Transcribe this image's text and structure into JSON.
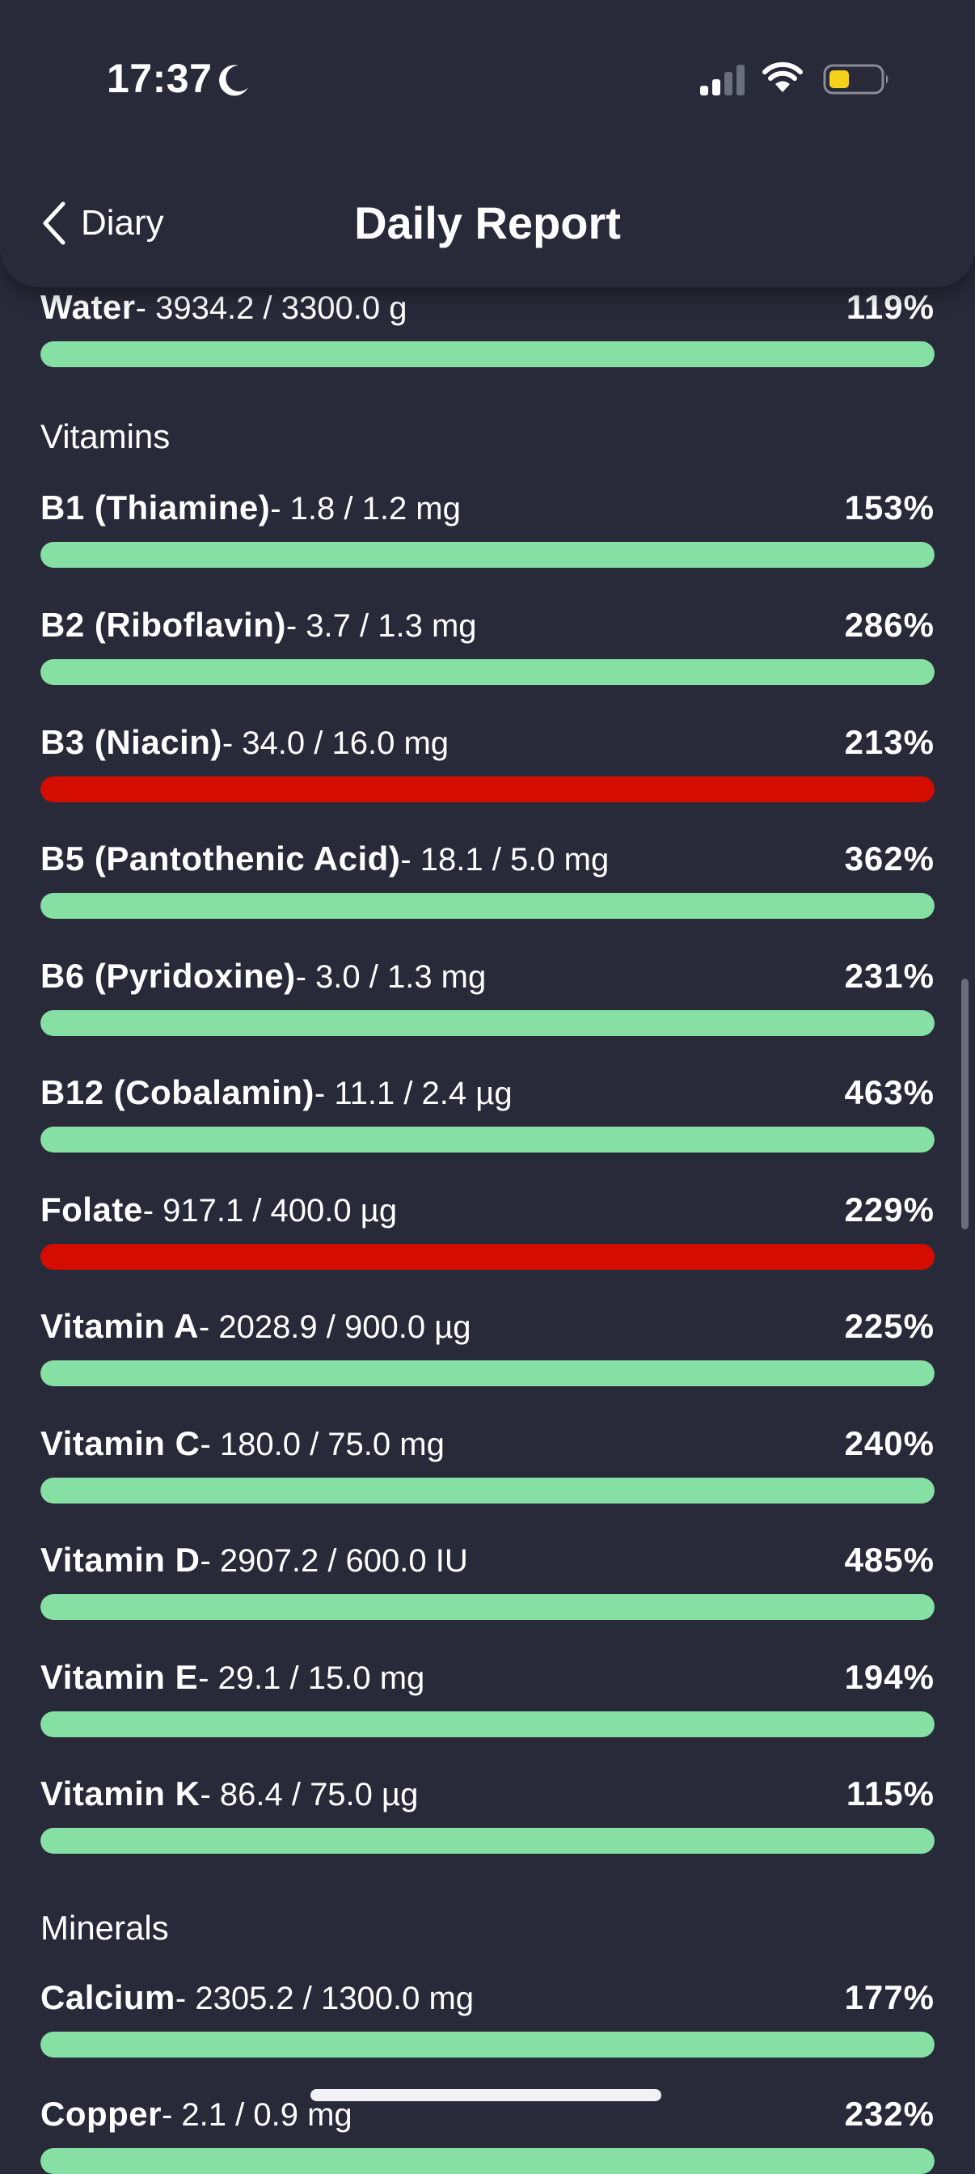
{
  "status_bar": {
    "time": "17:37",
    "icons": [
      "moon-icon",
      "cellular-signal-icon",
      "wifi-icon",
      "battery-icon"
    ]
  },
  "header": {
    "back_label": "Diary",
    "title": "Daily Report"
  },
  "colors": {
    "background": "#282a39",
    "bar_ok": "#86dfa3",
    "bar_warning": "#d50c00"
  },
  "sections": [
    {
      "title": "",
      "items": [
        {
          "name": "Water",
          "amount": "- 3934.2 / 3300.0 g",
          "percent": "119%",
          "fill": 1.0,
          "status": "ok"
        }
      ]
    },
    {
      "title": "Vitamins",
      "items": [
        {
          "name": "B1 (Thiamine)",
          "amount": "- 1.8 / 1.2 mg",
          "percent": "153%",
          "fill": 1.0,
          "status": "ok"
        },
        {
          "name": "B2 (Riboflavin)",
          "amount": "- 3.7 / 1.3 mg",
          "percent": "286%",
          "fill": 1.0,
          "status": "ok"
        },
        {
          "name": "B3 (Niacin)",
          "amount": "- 34.0 / 16.0 mg",
          "percent": "213%",
          "fill": 1.0,
          "status": "warning"
        },
        {
          "name": "B5 (Pantothenic Acid)",
          "amount": "- 18.1 / 5.0 mg",
          "percent": "362%",
          "fill": 1.0,
          "status": "ok"
        },
        {
          "name": "B6 (Pyridoxine)",
          "amount": "- 3.0 / 1.3 mg",
          "percent": "231%",
          "fill": 1.0,
          "status": "ok"
        },
        {
          "name": "B12 (Cobalamin)",
          "amount": "- 11.1 / 2.4 µg",
          "percent": "463%",
          "fill": 1.0,
          "status": "ok"
        },
        {
          "name": "Folate",
          "amount": "- 917.1 / 400.0 µg",
          "percent": "229%",
          "fill": 1.0,
          "status": "warning"
        },
        {
          "name": "Vitamin A",
          "amount": "- 2028.9 / 900.0 µg",
          "percent": "225%",
          "fill": 1.0,
          "status": "ok"
        },
        {
          "name": "Vitamin C",
          "amount": "- 180.0 / 75.0 mg",
          "percent": "240%",
          "fill": 1.0,
          "status": "ok"
        },
        {
          "name": "Vitamin D",
          "amount": "- 2907.2 / 600.0 IU",
          "percent": "485%",
          "fill": 1.0,
          "status": "ok"
        },
        {
          "name": "Vitamin E",
          "amount": "- 29.1 / 15.0 mg",
          "percent": "194%",
          "fill": 1.0,
          "status": "ok"
        },
        {
          "name": "Vitamin K",
          "amount": "- 86.4 / 75.0 µg",
          "percent": "115%",
          "fill": 1.0,
          "status": "ok"
        }
      ]
    },
    {
      "title": "Minerals",
      "items": [
        {
          "name": "Calcium",
          "amount": "- 2305.2 / 1300.0 mg",
          "percent": "177%",
          "fill": 1.0,
          "status": "ok"
        },
        {
          "name": "Copper",
          "amount": "- 2.1 / 0.9 mg",
          "percent": "232%",
          "fill": 1.0,
          "status": "ok"
        }
      ]
    }
  ]
}
